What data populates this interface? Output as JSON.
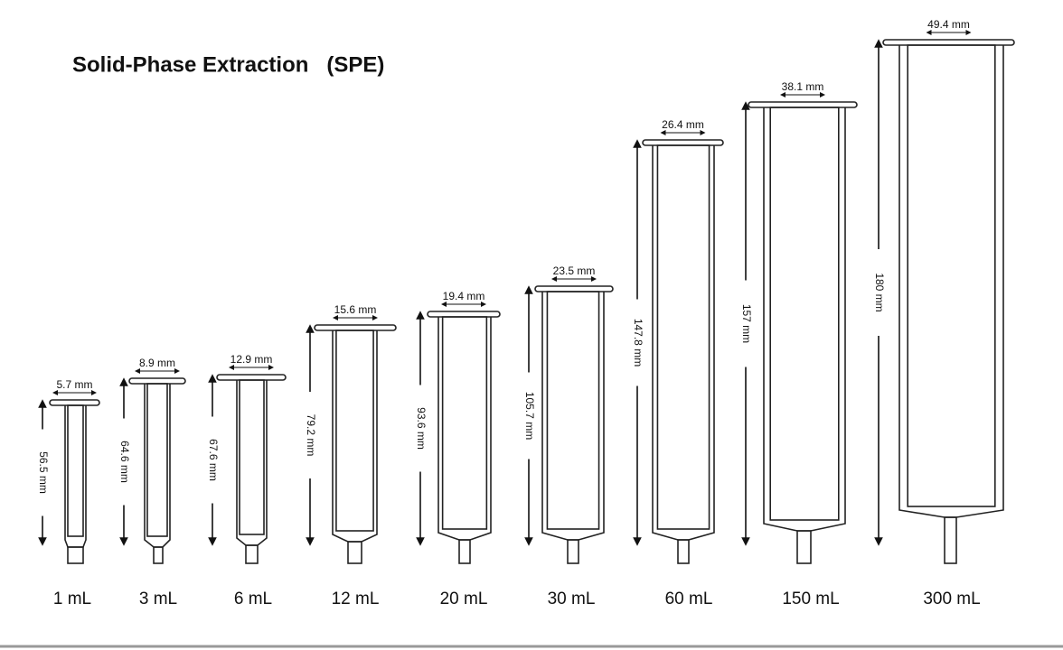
{
  "header": {
    "title": "Solid-Phase Extraction   (SPE)"
  },
  "cartridges": [
    {
      "width": "5.7 mm",
      "height": "56.5 mm",
      "volume": "1 mL"
    },
    {
      "width": "8.9 mm",
      "height": "64.6 mm",
      "volume": "3 mL"
    },
    {
      "width": "12.9 mm",
      "height": "67.6 mm",
      "volume": "6 mL"
    },
    {
      "width": "15.6 mm",
      "height": "79.2 mm",
      "volume": "12 mL"
    },
    {
      "width": "19.4 mm",
      "height": "93.6 mm",
      "volume": "20 mL"
    },
    {
      "width": "23.5 mm",
      "height": "105.7 mm",
      "volume": "30 mL"
    },
    {
      "width": "26.4 mm",
      "height": "147.8 mm",
      "volume": "60 mL"
    },
    {
      "width": "38.1 mm",
      "height": "157 mm",
      "volume": "150 mL"
    },
    {
      "width": "49.4 mm",
      "height": "180 mm",
      "volume": "300 mL"
    }
  ]
}
